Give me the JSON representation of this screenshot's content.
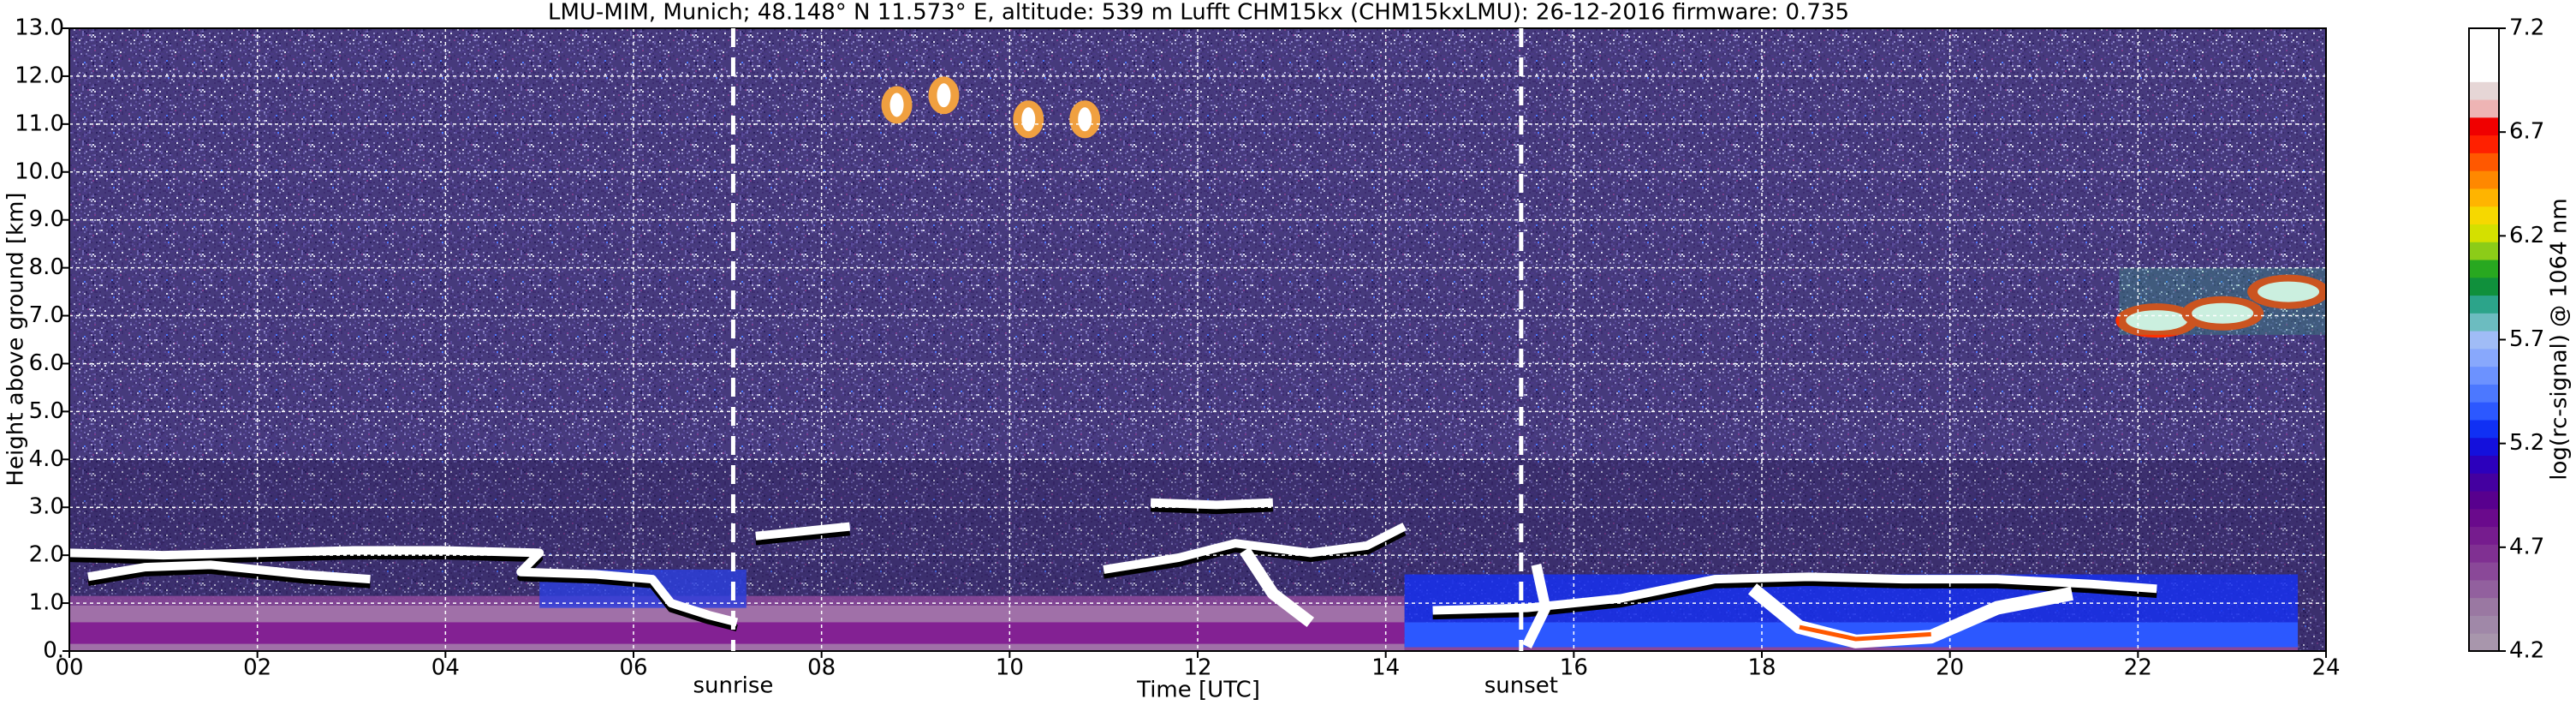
{
  "chart_data": {
    "type": "heatmap",
    "title": "LMU-MIM, Munich; 48.148° N 11.573° E, altitude: 539 m    Lufft CHM15kx (CHM15kxLMU): 26-12-2016    firmware: 0.735",
    "x_label": "Time [UTC]",
    "y_label": "Height above ground [km]",
    "xlim": [
      0,
      24
    ],
    "xticks": [
      {
        "value": 0,
        "label": "00"
      },
      {
        "value": 2,
        "label": "02"
      },
      {
        "value": 4,
        "label": "04"
      },
      {
        "value": 6,
        "label": "06"
      },
      {
        "value": 8,
        "label": "08"
      },
      10,
      12,
      14,
      16,
      18,
      20,
      22,
      24
    ],
    "ylim": [
      0,
      13
    ],
    "yticks": [
      {
        "value": 0,
        "label": "0."
      },
      {
        "value": 1,
        "label": "1.0"
      },
      {
        "value": 2,
        "label": "2.0"
      },
      {
        "value": 3,
        "label": "3.0"
      },
      {
        "value": 4,
        "label": "4.0"
      },
      {
        "value": 5,
        "label": "5.0"
      },
      {
        "value": 6,
        "label": "6.0"
      },
      {
        "value": 7,
        "label": "7.0"
      },
      {
        "value": 8,
        "label": "8.0"
      },
      {
        "value": 9,
        "label": "9.0"
      },
      {
        "value": 10,
        "label": "10.0"
      },
      {
        "value": 11,
        "label": "11.0"
      },
      {
        "value": 12,
        "label": "12.0"
      },
      {
        "value": 13,
        "label": "13.0"
      }
    ],
    "grid": true,
    "markers": [
      {
        "x": 7.06,
        "label": "sunrise"
      },
      {
        "x": 15.44,
        "label": "sunset"
      }
    ],
    "colorbar": {
      "label": "log(rc-signal) @ 1064 nm",
      "lim": [
        4.2,
        7.2
      ],
      "ticks": [
        4.2,
        4.7,
        5.2,
        5.7,
        6.2,
        6.7,
        7.2
      ],
      "colors": [
        "#a896ac",
        "#a088a8",
        "#9a78a2",
        "#92609e",
        "#8a4898",
        "#803092",
        "#761c8e",
        "#6a0a8c",
        "#58008e",
        "#4400a0",
        "#2c00bc",
        "#1410dc",
        "#1030f4",
        "#2c58ff",
        "#4c78ff",
        "#6c92ff",
        "#88a8fc",
        "#a0bcf6",
        "#6cbcc0",
        "#2ca48a",
        "#10903c",
        "#28a820",
        "#8ccc18",
        "#d4e000",
        "#f6d800",
        "#ffb400",
        "#ff8800",
        "#ff5800",
        "#ff2000",
        "#f00000",
        "#eeb4b4",
        "#e6d6d6",
        "#ffffff",
        "#ffffff",
        "#ffffff"
      ]
    }
  }
}
